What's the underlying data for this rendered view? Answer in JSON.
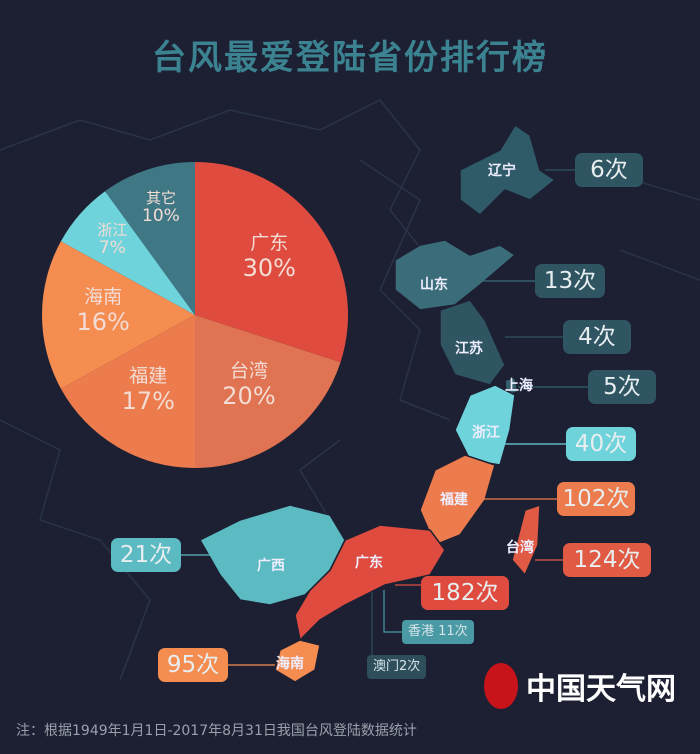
{
  "title": "台风最爱登陆省份排行榜",
  "chart_data": {
    "type": "pie",
    "slices": [
      {
        "label": "广东",
        "value": 30,
        "text": "30%",
        "color": "#df4c3f"
      },
      {
        "label": "台湾",
        "value": 20,
        "text": "20%",
        "color": "#e07352"
      },
      {
        "label": "福建",
        "value": 17,
        "text": "17%",
        "color": "#ec7b4d"
      },
      {
        "label": "海南",
        "value": 16,
        "text": "16%",
        "color": "#f58c50"
      },
      {
        "label": "浙江",
        "value": 7,
        "text": "7%",
        "color": "#6fd3db"
      },
      {
        "label": "其它",
        "value": 10,
        "text": "10%",
        "color": "#3f7785"
      }
    ]
  },
  "map": {
    "provinces": [
      {
        "name": "辽宁",
        "count": "6次"
      },
      {
        "name": "山东",
        "count": "13次"
      },
      {
        "name": "江苏",
        "count": "4次"
      },
      {
        "name": "上海",
        "count": "5次"
      },
      {
        "name": "浙江",
        "count": "40次"
      },
      {
        "name": "福建",
        "count": "102次"
      },
      {
        "name": "台湾",
        "count": "124次"
      },
      {
        "name": "广东",
        "count": "182次"
      },
      {
        "name": "广西",
        "count": "21次"
      },
      {
        "name": "海南",
        "count": "95次"
      }
    ],
    "hongkong": "香港 11次",
    "macau": "澳门2次"
  },
  "logo": "中国天气网",
  "note": "注：根据1949年1月1日-2017年8月31日我国台风登陆数据统计"
}
